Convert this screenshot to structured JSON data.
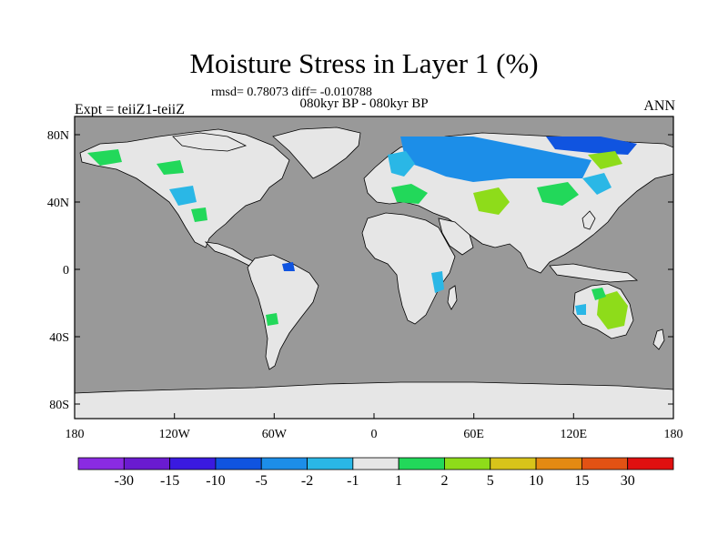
{
  "map": {
    "title": "Moisture Stress in Layer 1 (%)",
    "stats_line": "rmsd= 0.78073 diff= -0.010788",
    "period": "080kyr BP - 080kyr BP",
    "left_subtitle": "Expt = teiiZ1-teiiZ",
    "right_subtitle": "ANN",
    "ocean_color": "#999999",
    "land_color": "#e6e6e6"
  },
  "axes": {
    "y_ticks": [
      "80N",
      "40N",
      "0",
      "40S",
      "80S"
    ],
    "x_ticks": [
      "180",
      "120W",
      "60W",
      "0",
      "60E",
      "120E",
      "180"
    ]
  },
  "colorbar": {
    "labels": [
      "-30",
      "-15",
      "-10",
      "-5",
      "-2",
      "-1",
      "1",
      "2",
      "5",
      "10",
      "15",
      "30"
    ],
    "colors": [
      "#8a2be2",
      "#6a1bd0",
      "#3a1ae0",
      "#1054e0",
      "#1c8ee8",
      "#2ab7e6",
      "#e6e6e6",
      "#22d85a",
      "#8edc1a",
      "#d8c41a",
      "#e48a12",
      "#e25214",
      "#e01010"
    ]
  }
}
